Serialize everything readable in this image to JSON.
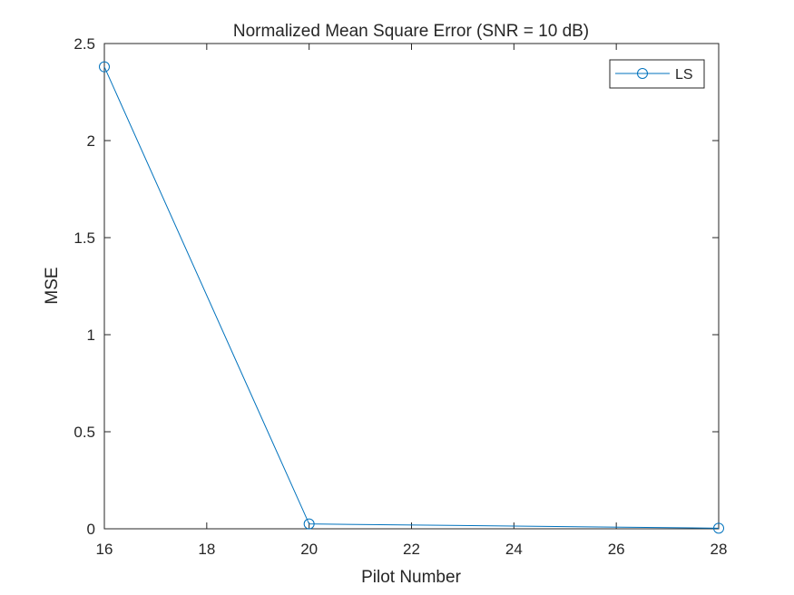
{
  "chart_data": {
    "type": "line",
    "title": "Normalized Mean Square Error (SNR = 10 dB)",
    "xlabel": "Pilot Number",
    "ylabel": "MSE",
    "xlim": [
      16,
      28
    ],
    "ylim": [
      0,
      2.5
    ],
    "xticks": [
      16,
      18,
      20,
      22,
      24,
      26,
      28
    ],
    "xtick_labels": [
      "16",
      "18",
      "20",
      "22",
      "24",
      "26",
      "28"
    ],
    "yticks": [
      0,
      0.5,
      1,
      1.5,
      2,
      2.5
    ],
    "ytick_labels": [
      "0",
      "0.5",
      "1",
      "1.5",
      "2",
      "2.5"
    ],
    "grid": false,
    "legend_position": "top-right",
    "series": [
      {
        "name": "LS",
        "color": "#0072BD",
        "marker": "circle",
        "x": [
          16,
          20,
          28
        ],
        "y": [
          2.38,
          0.025,
          0.003
        ]
      }
    ]
  }
}
